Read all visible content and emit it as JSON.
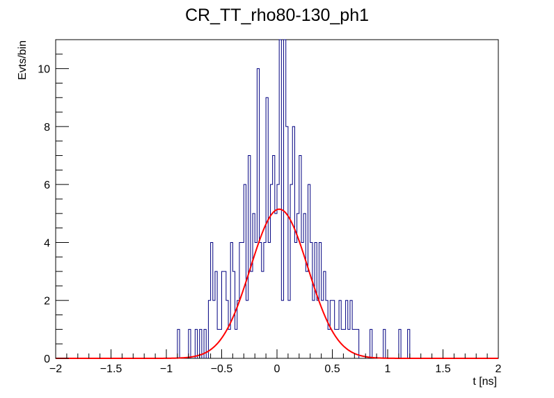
{
  "chart_data": {
    "type": "histogram",
    "title": "CR_TT_rho80-130_ph1",
    "xlabel": "t [ns]",
    "ylabel": "Evts/bin",
    "xlim": [
      -2,
      2
    ],
    "ylim": [
      0,
      11
    ],
    "grid": false,
    "legend": "none",
    "x_ticks": [
      -2,
      -1.5,
      -1,
      -0.5,
      0,
      0.5,
      1,
      1.5,
      2
    ],
    "x_tick_labels": [
      "−2",
      "−1.5",
      "−1",
      "−0.5",
      "0",
      "0.5",
      "1",
      "1.5",
      "2"
    ],
    "y_ticks": [
      0,
      2,
      4,
      6,
      8,
      10
    ],
    "y_tick_labels": [
      "0",
      "2",
      "4",
      "6",
      "8",
      "10"
    ],
    "histogram": {
      "color": "#000080",
      "bin_width": 0.02,
      "points": [
        [
          -0.9,
          1
        ],
        [
          -0.8,
          1
        ],
        [
          -0.74,
          1
        ],
        [
          -0.7,
          1
        ],
        [
          -0.66,
          1
        ],
        [
          -0.62,
          2
        ],
        [
          -0.6,
          4
        ],
        [
          -0.58,
          2
        ],
        [
          -0.56,
          3
        ],
        [
          -0.54,
          1
        ],
        [
          -0.52,
          1
        ],
        [
          -0.5,
          3
        ],
        [
          -0.48,
          3
        ],
        [
          -0.46,
          2
        ],
        [
          -0.44,
          1
        ],
        [
          -0.42,
          4
        ],
        [
          -0.4,
          3
        ],
        [
          -0.38,
          1
        ],
        [
          -0.36,
          2
        ],
        [
          -0.34,
          4
        ],
        [
          -0.32,
          4
        ],
        [
          -0.3,
          6
        ],
        [
          -0.28,
          2
        ],
        [
          -0.26,
          7
        ],
        [
          -0.24,
          3
        ],
        [
          -0.22,
          5
        ],
        [
          -0.2,
          4
        ],
        [
          -0.18,
          10
        ],
        [
          -0.16,
          4
        ],
        [
          -0.14,
          3
        ],
        [
          -0.12,
          4
        ],
        [
          -0.1,
          9
        ],
        [
          -0.08,
          4
        ],
        [
          -0.06,
          6
        ],
        [
          -0.04,
          7
        ],
        [
          -0.02,
          5
        ],
        [
          0.0,
          6
        ],
        [
          0.02,
          11
        ],
        [
          0.04,
          2
        ],
        [
          0.06,
          11
        ],
        [
          0.08,
          8
        ],
        [
          0.1,
          2
        ],
        [
          0.12,
          6
        ],
        [
          0.14,
          8
        ],
        [
          0.16,
          4
        ],
        [
          0.18,
          5
        ],
        [
          0.2,
          7
        ],
        [
          0.22,
          4
        ],
        [
          0.24,
          5
        ],
        [
          0.26,
          3
        ],
        [
          0.28,
          6
        ],
        [
          0.3,
          4
        ],
        [
          0.32,
          2
        ],
        [
          0.34,
          4
        ],
        [
          0.36,
          2
        ],
        [
          0.38,
          4
        ],
        [
          0.4,
          2
        ],
        [
          0.42,
          3
        ],
        [
          0.44,
          2
        ],
        [
          0.46,
          1
        ],
        [
          0.48,
          2
        ],
        [
          0.5,
          2
        ],
        [
          0.52,
          1
        ],
        [
          0.54,
          1
        ],
        [
          0.56,
          2
        ],
        [
          0.58,
          1
        ],
        [
          0.6,
          1
        ],
        [
          0.62,
          2
        ],
        [
          0.64,
          1
        ],
        [
          0.66,
          2
        ],
        [
          0.68,
          1
        ],
        [
          0.7,
          1
        ],
        [
          0.72,
          1
        ],
        [
          0.84,
          1
        ],
        [
          0.96,
          1
        ],
        [
          1.1,
          1
        ],
        [
          1.18,
          1
        ]
      ]
    },
    "fit": {
      "type": "gaussian",
      "color": "#ff0000",
      "amplitude": 5.15,
      "mean": 0.02,
      "sigma": 0.26
    }
  }
}
